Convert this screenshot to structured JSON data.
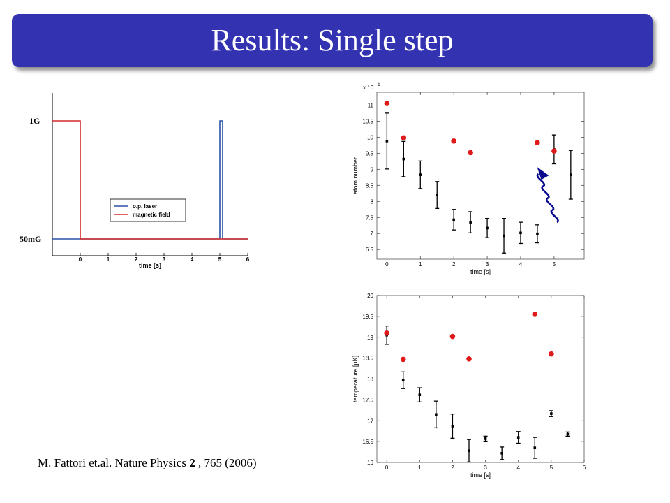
{
  "slide": {
    "title": "Results: Single step",
    "citation": {
      "authors": "M. Fattori et.al.",
      "journal": "Nature Physics",
      "volume": "2",
      "rest": ", 765 (2006)"
    }
  },
  "colors": {
    "title_bar": "#3333b2",
    "laser": "#2a52a8",
    "field": "#d62a2a",
    "red_points": "#e01a1a",
    "arrow": "#0a0a8c"
  },
  "chart_data": [
    {
      "type": "line",
      "title": "",
      "xlabel": "time [s]",
      "ylabel": "",
      "xlim": [
        -1,
        6
      ],
      "x_ticks": [
        0,
        1,
        2,
        3,
        4,
        5,
        6
      ],
      "side_labels": {
        "high": "1G",
        "low": "50mG"
      },
      "legend": {
        "position": "center",
        "entries": [
          "o.p. laser",
          "magnetic field"
        ]
      },
      "series": [
        {
          "name": "o.p. laser",
          "color": "#2a52a8",
          "x": [
            -1,
            0,
            5,
            5,
            5.1,
            5.1,
            6
          ],
          "y": [
            "50mG",
            "50mG",
            "50mG",
            "1G",
            "1G",
            "50mG",
            "50mG"
          ]
        },
        {
          "name": "magnetic field",
          "color": "#d62a2a",
          "x": [
            -1,
            0,
            0,
            6
          ],
          "y": [
            "1G",
            "1G",
            "50mG",
            "50mG"
          ]
        }
      ]
    },
    {
      "type": "scatter",
      "xlabel": "time [s]",
      "ylabel": "atom number",
      "y_multiplier": "x 10",
      "y_exponent": "5",
      "xlim": [
        -0.3,
        5.9
      ],
      "ylim": [
        6.2,
        11.4
      ],
      "x_ticks": [
        0,
        1,
        2,
        3,
        4,
        5
      ],
      "y_ticks": [
        6.5,
        7,
        7.5,
        8,
        8.5,
        9,
        9.5,
        10,
        10.5,
        11
      ],
      "series": [
        {
          "marker": "errorbar",
          "color": "#000000",
          "x": [
            0,
            0.5,
            1,
            1.5,
            2,
            2.5,
            3,
            3.5,
            4,
            4.5,
            5,
            5.5
          ],
          "y": [
            9.88,
            9.32,
            8.83,
            8.2,
            7.43,
            7.35,
            7.17,
            6.93,
            7.02,
            6.99,
            9.62,
            8.83
          ],
          "err": [
            0.87,
            0.55,
            0.43,
            0.42,
            0.32,
            0.33,
            0.3,
            0.54,
            0.33,
            0.28,
            0.45,
            0.76
          ]
        },
        {
          "marker": "dot",
          "color": "#e01a1a",
          "x": [
            0,
            0.5,
            2,
            2.5,
            4.5,
            5
          ],
          "y": [
            11.05,
            9.98,
            9.88,
            9.52,
            9.83,
            9.57
          ]
        }
      ]
    },
    {
      "type": "scatter",
      "xlabel": "time [s]",
      "ylabel": "temperature [µK]",
      "xlim": [
        -0.3,
        6
      ],
      "ylim": [
        16,
        20
      ],
      "x_ticks": [
        0,
        1,
        2,
        3,
        4,
        5,
        6
      ],
      "y_ticks": [
        16,
        16.5,
        17,
        17.5,
        18,
        18.5,
        19,
        19.5,
        20
      ],
      "series": [
        {
          "marker": "errorbar",
          "color": "#000000",
          "x": [
            0,
            0.5,
            1,
            1.5,
            2,
            2.5,
            3,
            3.5,
            4,
            4.5,
            5,
            5.5
          ],
          "y": [
            19.05,
            17.97,
            17.62,
            17.15,
            16.87,
            16.28,
            16.57,
            16.22,
            16.6,
            16.35,
            17.17,
            16.68
          ],
          "err": [
            0.22,
            0.2,
            0.17,
            0.32,
            0.29,
            0.27,
            0.06,
            0.15,
            0.14,
            0.25,
            0.07,
            0.05
          ]
        },
        {
          "marker": "dot",
          "color": "#e01a1a",
          "x": [
            0,
            0.5,
            2,
            2.5,
            4.5,
            5
          ],
          "y": [
            19.1,
            18.47,
            19.02,
            18.48,
            19.55,
            18.6
          ]
        }
      ]
    }
  ]
}
